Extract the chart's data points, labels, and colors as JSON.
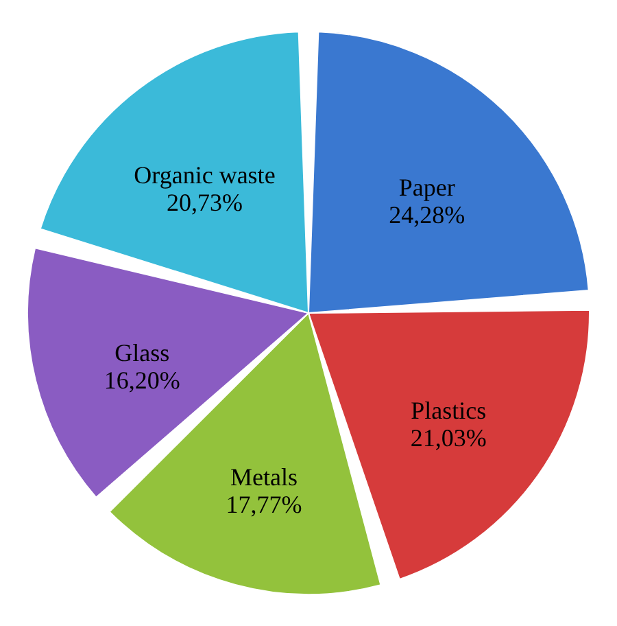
{
  "chart_data": {
    "type": "pie",
    "categories": [
      "Paper",
      "Plastics",
      "Metals",
      "Glass",
      "Organic waste"
    ],
    "values": [
      24.28,
      21.03,
      17.77,
      16.2,
      20.73
    ],
    "colors": [
      "#3a78d0",
      "#d63b3b",
      "#93c23c",
      "#8a5cc2",
      "#3bbad9"
    ],
    "value_labels": [
      "24,28%",
      "21,03%",
      "17,77%",
      "16,20%",
      "20,73%"
    ],
    "legend": false
  }
}
